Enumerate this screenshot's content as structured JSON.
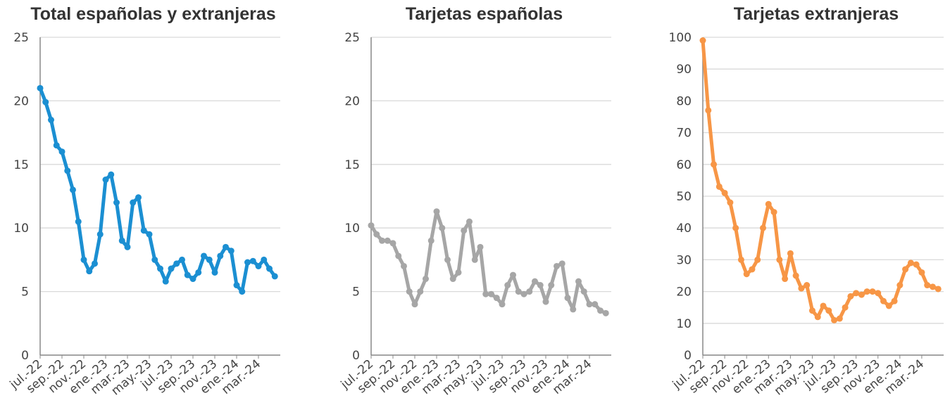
{
  "chart_data": [
    {
      "type": "line",
      "title": "Total españolas y extranjeras",
      "categories": [
        "jul.-22",
        null,
        null,
        null,
        "sep.-22",
        null,
        null,
        null,
        "nov.-22",
        null,
        null,
        null,
        "ene.-23",
        null,
        null,
        null,
        "mar.-23",
        null,
        null,
        null,
        "may.-23",
        null,
        null,
        null,
        "jul.-23",
        null,
        null,
        null,
        "sep.-23",
        null,
        null,
        null,
        "nov.-23",
        null,
        null,
        null,
        "ene.-24",
        null,
        null,
        null,
        "mar.-24",
        null,
        null,
        null
      ],
      "series": [
        {
          "name": "Total españolas y extranjeras",
          "color": "#1b8fd2",
          "values": [
            21,
            19.9,
            18.5,
            16.5,
            16,
            14.5,
            13,
            10.5,
            7.5,
            6.6,
            7.2,
            9.5,
            13.8,
            14.2,
            12,
            9,
            8.5,
            12,
            12.4,
            9.8,
            9.5,
            7.5,
            6.8,
            5.8,
            6.8,
            7.2,
            7.5,
            6.3,
            6,
            6.5,
            7.8,
            7.5,
            6.5,
            7.8,
            8.5,
            8.2,
            5.5,
            5,
            7.3,
            7.4,
            7,
            7.5,
            6.8,
            6.2
          ]
        }
      ],
      "ylim": [
        0,
        25
      ],
      "yticks": [
        0,
        5,
        10,
        15,
        20,
        25
      ],
      "grid": true
    },
    {
      "type": "line",
      "title": "Tarjetas españolas",
      "categories": [
        "jul.-22",
        null,
        null,
        null,
        "sep.-22",
        null,
        null,
        null,
        "nov.-22",
        null,
        null,
        null,
        "ene.-23",
        null,
        null,
        null,
        "mar.-23",
        null,
        null,
        null,
        "may.-23",
        null,
        null,
        null,
        "jul.-23",
        null,
        null,
        null,
        "sep.-23",
        null,
        null,
        null,
        "nov.-23",
        null,
        null,
        null,
        "ene.-24",
        null,
        null,
        null,
        "mar.-24",
        null,
        null,
        null
      ],
      "series": [
        {
          "name": "Tarjetas españolas",
          "color": "#a6a6a6",
          "values": [
            10.2,
            9.5,
            9,
            9,
            8.8,
            7.8,
            7,
            5,
            4,
            5,
            6,
            9,
            11.3,
            10,
            7.5,
            6,
            6.5,
            9.8,
            10.5,
            7.5,
            8.5,
            4.8,
            4.8,
            4.5,
            4,
            5.5,
            6.3,
            5,
            4.8,
            5,
            5.8,
            5.5,
            4.2,
            5.5,
            7,
            7.2,
            4.5,
            3.6,
            5.8,
            5,
            4,
            4,
            3.5,
            3.3
          ]
        }
      ],
      "ylim": [
        0,
        25
      ],
      "yticks": [
        0,
        5,
        10,
        15,
        20,
        25
      ],
      "grid": true
    },
    {
      "type": "line",
      "title": "Tarjetas extranjeras",
      "categories": [
        "jul.-22",
        null,
        null,
        null,
        "sep.-22",
        null,
        null,
        null,
        "nov.-22",
        null,
        null,
        null,
        "ene.-23",
        null,
        null,
        null,
        "mar.-23",
        null,
        null,
        null,
        "may.-23",
        null,
        null,
        null,
        "jul.-23",
        null,
        null,
        null,
        "sep.-23",
        null,
        null,
        null,
        "nov.-23",
        null,
        null,
        null,
        "ene.-24",
        null,
        null,
        null,
        "mar.-24",
        null,
        null,
        null
      ],
      "series": [
        {
          "name": "Tarjetas extranjeras",
          "color": "#f79646",
          "values": [
            99,
            77,
            60,
            53,
            51,
            48,
            40,
            30,
            25.5,
            27,
            30,
            40,
            47.5,
            45,
            30,
            24,
            32,
            25,
            21,
            22,
            14,
            12,
            15.5,
            14,
            11,
            11.5,
            15,
            18.5,
            19.5,
            19,
            20,
            20,
            19.5,
            17,
            15.5,
            17,
            22,
            27,
            29,
            28.5,
            26,
            22,
            21.5,
            20.8
          ]
        }
      ],
      "ylim": [
        0,
        100
      ],
      "yticks": [
        0,
        10,
        20,
        30,
        40,
        50,
        60,
        70,
        80,
        90,
        100
      ],
      "grid": true
    }
  ]
}
